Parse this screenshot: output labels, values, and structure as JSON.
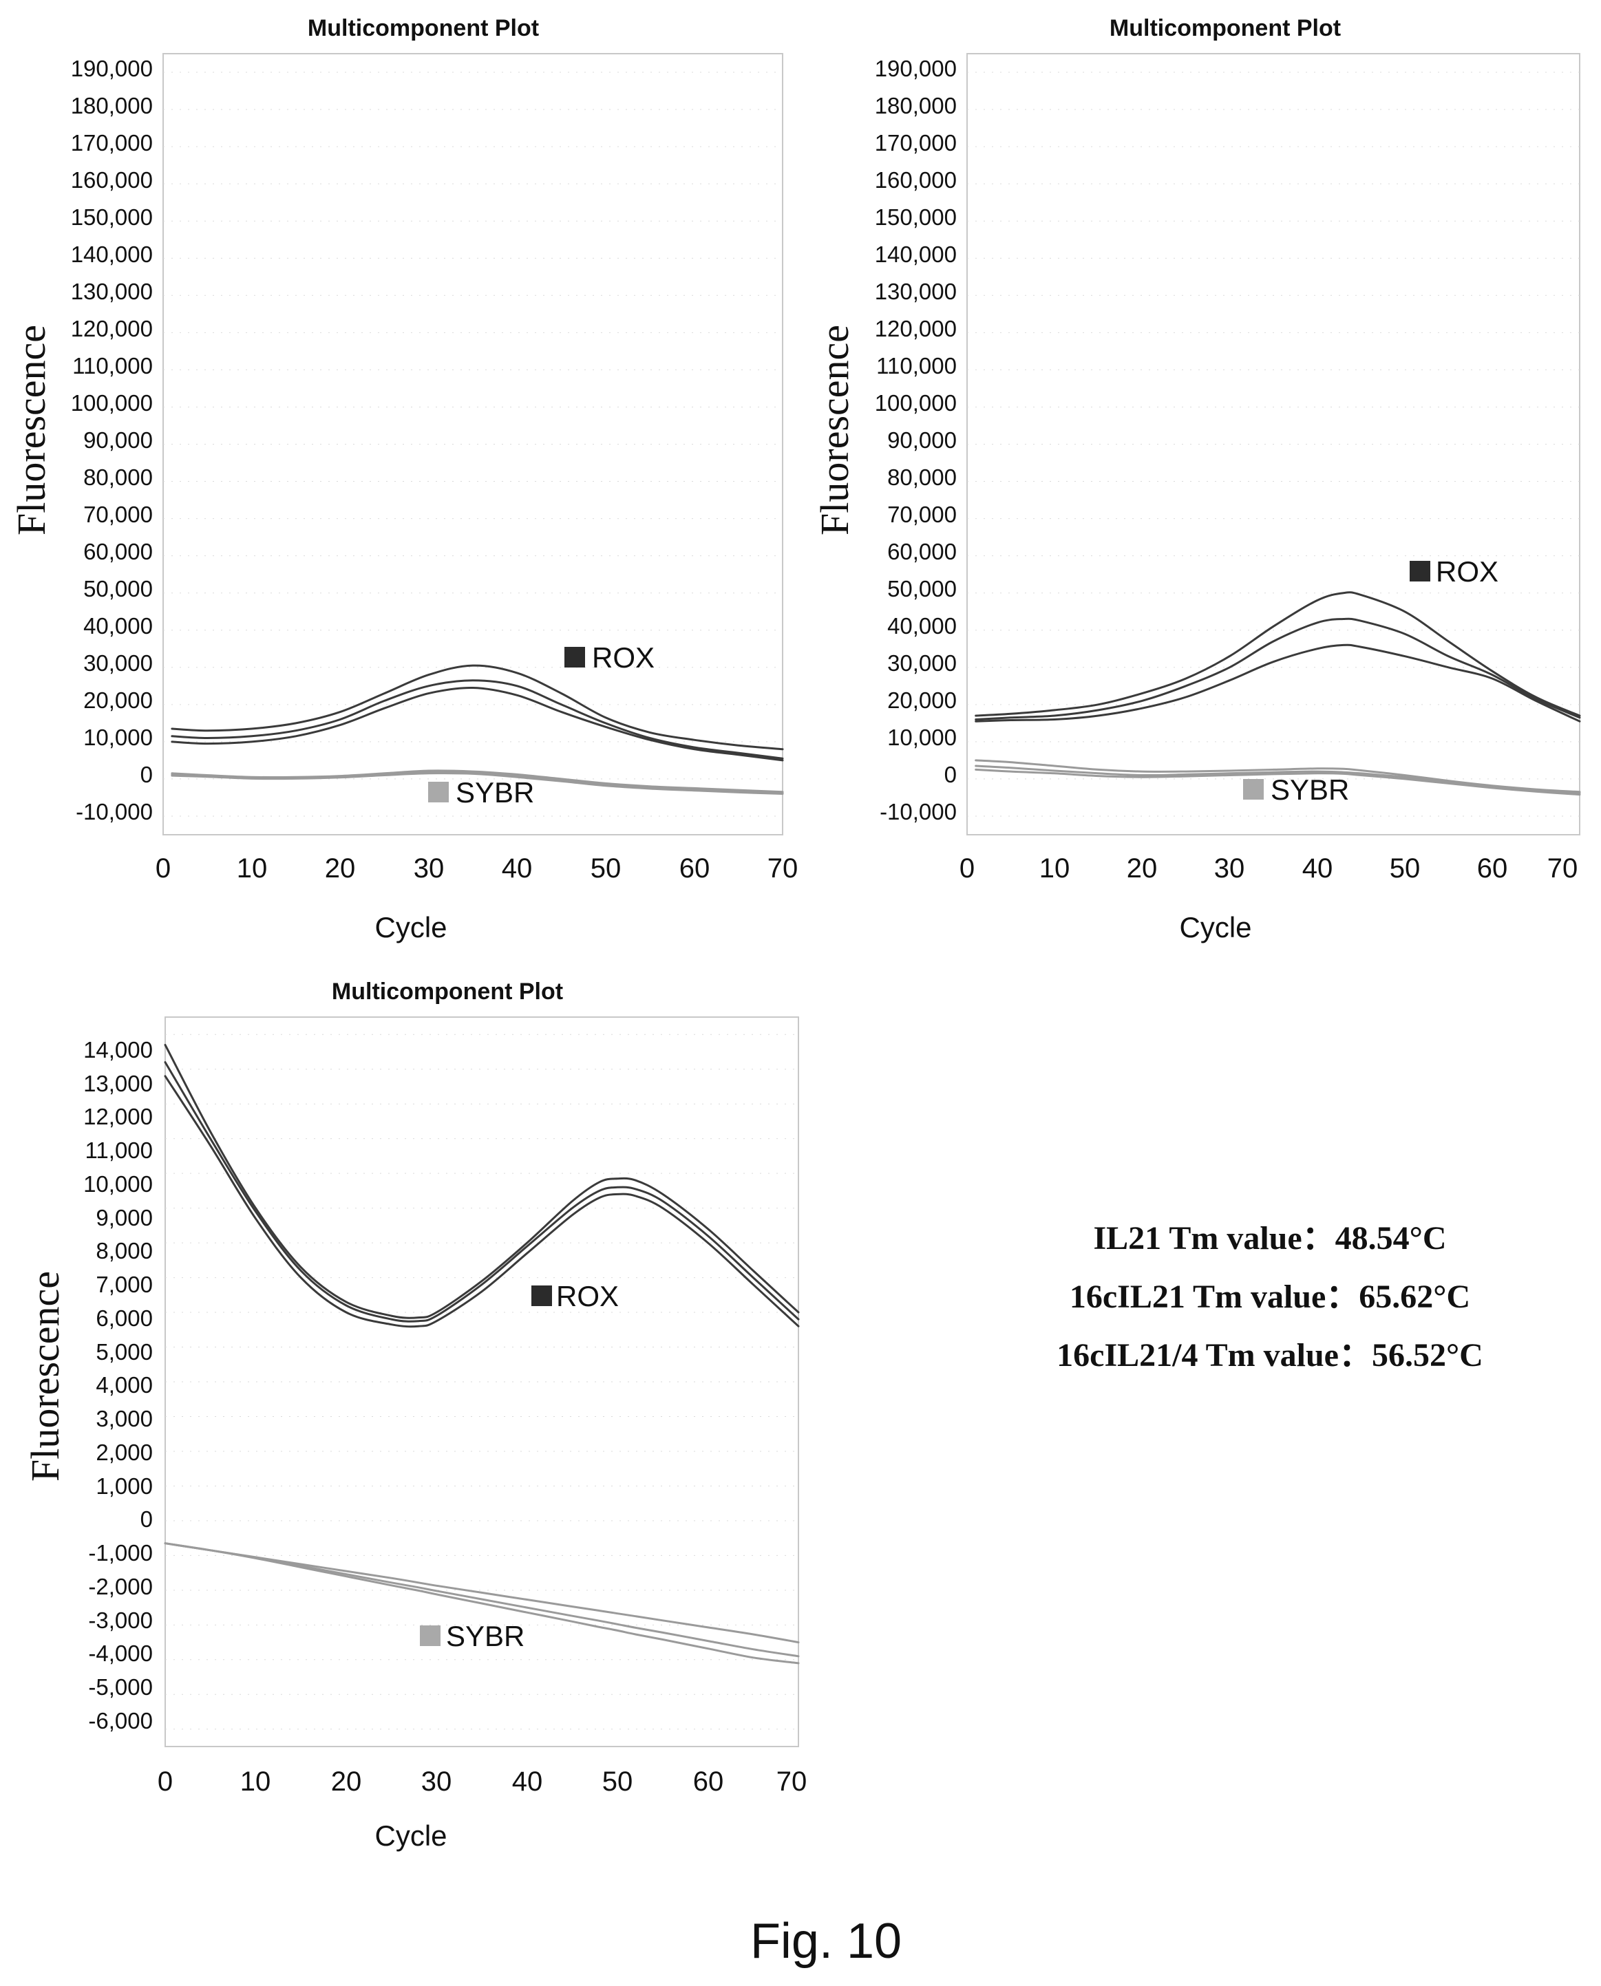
{
  "figure": {
    "caption": "Fig. 10",
    "tm_values": [
      "IL21 Tm value：48.54°C",
      "16cIL21 Tm value：65.62°C",
      "16cIL21/4 Tm value：56.52°C"
    ]
  },
  "colors": {
    "frame": "#c8c8c8",
    "rox_swatch": "#2b2b2b",
    "sybr_swatch": "#a9a9a9",
    "rox_curve": "#3a3a3a",
    "sybr_curve": "#9a9a9a"
  },
  "chart_data": [
    {
      "id": "chart-1",
      "type": "line",
      "title": "Multicomponent Plot",
      "xlabel": "Cycle",
      "ylabel": "Fluorescence",
      "xlim": [
        0,
        70
      ],
      "ylim": [
        -15000,
        195000
      ],
      "x_ticks": [
        0,
        10,
        20,
        30,
        40,
        50,
        60,
        70
      ],
      "y_ticks": [
        -10000,
        0,
        10000,
        20000,
        30000,
        40000,
        50000,
        60000,
        70000,
        80000,
        90000,
        100000,
        110000,
        120000,
        130000,
        140000,
        150000,
        160000,
        170000,
        180000,
        190000
      ],
      "y_tick_labels": [
        "-10,000",
        "0",
        "10,000",
        "20,000",
        "30,000",
        "40,000",
        "50,000",
        "60,000",
        "70,000",
        "80,000",
        "90,000",
        "100,000",
        "110,000",
        "120,000",
        "130,000",
        "140,000",
        "150,000",
        "160,000",
        "170,000",
        "180,000",
        "190,000"
      ],
      "x": [
        1,
        5,
        10,
        15,
        20,
        25,
        30,
        35,
        40,
        45,
        50,
        55,
        60,
        65,
        70
      ],
      "legend": [
        {
          "label": "ROX",
          "position": "right-middle"
        },
        {
          "label": "SYBR",
          "position": "bottom-center"
        }
      ],
      "series": [
        {
          "group": "ROX",
          "values": [
            13500,
            13000,
            13500,
            15000,
            18000,
            23000,
            28000,
            30500,
            28500,
            23000,
            16500,
            12500,
            10500,
            9000,
            8000
          ]
        },
        {
          "group": "ROX",
          "values": [
            11500,
            11000,
            11500,
            13000,
            16000,
            21000,
            25000,
            26500,
            25000,
            20000,
            15000,
            11000,
            8500,
            7000,
            5500
          ]
        },
        {
          "group": "ROX",
          "values": [
            10000,
            9500,
            10000,
            11500,
            14500,
            19000,
            23000,
            24500,
            22500,
            18000,
            14000,
            10500,
            8000,
            6500,
            5000
          ]
        },
        {
          "group": "SYBR",
          "values": [
            1500,
            1000,
            500,
            500,
            800,
            1500,
            2200,
            2000,
            1200,
            0,
            -1200,
            -2000,
            -2500,
            -3000,
            -3500
          ]
        },
        {
          "group": "SYBR",
          "values": [
            1200,
            800,
            300,
            300,
            600,
            1200,
            1800,
            1700,
            800,
            -300,
            -1500,
            -2300,
            -2800,
            -3300,
            -3800
          ]
        },
        {
          "group": "SYBR",
          "values": [
            900,
            600,
            100,
            100,
            400,
            1000,
            1500,
            1400,
            500,
            -600,
            -1800,
            -2600,
            -3100,
            -3600,
            -4000
          ]
        }
      ]
    },
    {
      "id": "chart-2",
      "type": "line",
      "title": "Multicomponent Plot",
      "xlabel": "Cycle",
      "ylabel": "Fluorescence",
      "xlim": [
        0,
        70
      ],
      "ylim": [
        -15000,
        195000
      ],
      "x_ticks": [
        0,
        10,
        20,
        30,
        40,
        50,
        60,
        70
      ],
      "y_ticks": [
        -10000,
        0,
        10000,
        20000,
        30000,
        40000,
        50000,
        60000,
        70000,
        80000,
        90000,
        100000,
        110000,
        120000,
        130000,
        140000,
        150000,
        160000,
        170000,
        180000,
        190000
      ],
      "y_tick_labels": [
        "-10,000",
        "0",
        "10,000",
        "20,000",
        "30,000",
        "40,000",
        "50,000",
        "60,000",
        "70,000",
        "80,000",
        "90,000",
        "100,000",
        "110,000",
        "120,000",
        "130,000",
        "140,000",
        "150,000",
        "160,000",
        "170,000",
        "180,000",
        "190,000"
      ],
      "x": [
        1,
        5,
        10,
        15,
        20,
        25,
        30,
        35,
        40,
        43,
        45,
        50,
        55,
        60,
        65,
        70
      ],
      "legend": [
        {
          "label": "ROX",
          "position": "top-right"
        },
        {
          "label": "SYBR",
          "position": "bottom-center"
        }
      ],
      "series": [
        {
          "group": "ROX",
          "values": [
            17000,
            17500,
            18500,
            20000,
            23000,
            27000,
            33000,
            41000,
            48000,
            50000,
            49500,
            45000,
            37000,
            29000,
            22000,
            17000
          ]
        },
        {
          "group": "ROX",
          "values": [
            16000,
            16500,
            17000,
            18500,
            21000,
            25000,
            30000,
            37000,
            42000,
            43000,
            42500,
            39000,
            33000,
            28000,
            21500,
            16500
          ]
        },
        {
          "group": "ROX",
          "values": [
            15500,
            15800,
            16000,
            17000,
            19000,
            22000,
            26500,
            31500,
            35000,
            36000,
            35500,
            33000,
            30000,
            27000,
            21000,
            15500
          ]
        },
        {
          "group": "SYBR",
          "values": [
            5000,
            4500,
            3500,
            2500,
            2000,
            2000,
            2200,
            2500,
            2800,
            2700,
            2300,
            1000,
            -500,
            -1800,
            -2800,
            -3500
          ]
        },
        {
          "group": "SYBR",
          "values": [
            3500,
            3000,
            2200,
            1500,
            1000,
            1200,
            1500,
            1800,
            2000,
            1800,
            1500,
            500,
            -800,
            -2000,
            -3000,
            -3800
          ]
        },
        {
          "group": "SYBR",
          "values": [
            2500,
            2000,
            1500,
            800,
            500,
            700,
            1000,
            1300,
            1500,
            1400,
            1000,
            0,
            -1200,
            -2400,
            -3400,
            -4200
          ]
        }
      ]
    },
    {
      "id": "chart-3",
      "type": "line",
      "title": "Multicomponent Plot",
      "xlabel": "Cycle",
      "ylabel": "Fluorescence",
      "xlim": [
        0,
        70
      ],
      "ylim": [
        -6500,
        14500
      ],
      "x_ticks": [
        0,
        10,
        20,
        30,
        40,
        50,
        60,
        70
      ],
      "y_ticks": [
        -6000,
        -5000,
        -4000,
        -3000,
        -2000,
        -1000,
        0,
        1000,
        2000,
        3000,
        4000,
        5000,
        6000,
        7000,
        8000,
        9000,
        10000,
        11000,
        12000,
        13000,
        14000
      ],
      "y_tick_labels": [
        "-6,000",
        "-5,000",
        "-4,000",
        "-3,000",
        "-2,000",
        "-1,000",
        "0",
        "1,000",
        "2,000",
        "3,000",
        "4,000",
        "5,000",
        "6,000",
        "7,000",
        "8,000",
        "9,000",
        "10,000",
        "11,000",
        "12,000",
        "13,000",
        "14,000"
      ],
      "x": [
        0,
        5,
        10,
        15,
        20,
        25,
        28,
        30,
        35,
        40,
        45,
        48,
        50,
        52,
        55,
        60,
        65,
        70
      ],
      "legend": [
        {
          "label": "ROX",
          "position": "center"
        },
        {
          "label": "SYBR",
          "position": "bottom-left"
        }
      ],
      "series": [
        {
          "group": "ROX",
          "values": [
            13700,
            11200,
            9000,
            7300,
            6300,
            5900,
            5850,
            6000,
            6900,
            8000,
            9200,
            9750,
            9850,
            9800,
            9400,
            8400,
            7200,
            6000
          ]
        },
        {
          "group": "ROX",
          "values": [
            13200,
            11000,
            8900,
            7200,
            6200,
            5800,
            5750,
            5900,
            6800,
            7900,
            9000,
            9500,
            9600,
            9550,
            9200,
            8200,
            7000,
            5800
          ]
        },
        {
          "group": "ROX",
          "values": [
            12800,
            10800,
            8700,
            7000,
            6000,
            5650,
            5600,
            5750,
            6600,
            7700,
            8800,
            9300,
            9400,
            9350,
            9000,
            8000,
            6800,
            5600
          ]
        },
        {
          "group": "SYBR",
          "values": [
            -650,
            -850,
            -1050,
            -1250,
            -1450,
            -1650,
            -1780,
            -1870,
            -2070,
            -2270,
            -2470,
            -2590,
            -2670,
            -2750,
            -2870,
            -3070,
            -3270,
            -3500
          ]
        },
        {
          "group": "SYBR",
          "values": [
            -650,
            -850,
            -1060,
            -1300,
            -1540,
            -1780,
            -1920,
            -2020,
            -2260,
            -2500,
            -2740,
            -2880,
            -2980,
            -3080,
            -3220,
            -3460,
            -3700,
            -3900
          ]
        },
        {
          "group": "SYBR",
          "values": [
            -650,
            -850,
            -1080,
            -1340,
            -1600,
            -1860,
            -2010,
            -2120,
            -2380,
            -2640,
            -2900,
            -3060,
            -3160,
            -3270,
            -3420,
            -3680,
            -3940,
            -4100
          ]
        }
      ]
    }
  ]
}
